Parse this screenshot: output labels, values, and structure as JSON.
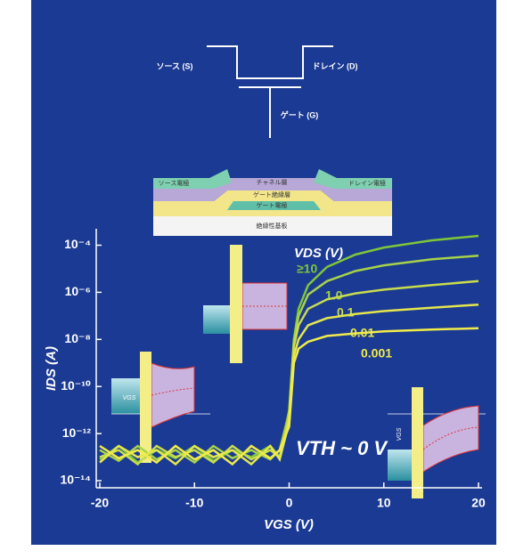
{
  "schematic": {
    "source": "ソース (S)",
    "drain": "ドレイン (D)",
    "gate": "ゲート (G)",
    "layers": [
      "ソース電極",
      "チャネル層",
      "ドレイン電極",
      "ゲート絶縁層",
      "ゲート電極",
      "絶縁性基板"
    ]
  },
  "chart_data": {
    "type": "line",
    "yscale": "log",
    "x_label": "VGS (V)",
    "y_label": "IDS (A)",
    "annotations": [
      "VDS (V)",
      "VTH ~ 0 V"
    ],
    "inset_labels": [
      "VGS",
      "VGS"
    ],
    "x": [
      -20,
      -18,
      -16,
      -14,
      -12,
      -10,
      -8,
      -6,
      -4,
      -2,
      -1,
      0,
      0.5,
      1,
      2,
      4,
      7,
      10,
      15,
      20
    ],
    "series": [
      {
        "name": "≥10",
        "color": "#7ec63a",
        "values": [
          8e-14,
          3e-13,
          6e-14,
          2e-13,
          9e-14,
          3e-13,
          7e-14,
          2e-13,
          1e-13,
          3e-13,
          1e-13,
          1e-11,
          1e-08,
          2e-07,
          2e-06,
          1.2e-05,
          4e-05,
          8e-05,
          0.00016,
          0.00025
        ]
      },
      {
        "name": "1.0",
        "color": "#a6d24a",
        "values": [
          2e-13,
          7e-14,
          3e-13,
          8e-14,
          2e-13,
          6e-14,
          3e-13,
          9e-14,
          2e-13,
          8e-14,
          2e-13,
          8e-12,
          8e-09,
          1e-07,
          8e-07,
          3e-06,
          8e-06,
          1.4e-05,
          2.5e-05,
          3.6e-05
        ]
      },
      {
        "name": "0.1",
        "color": "#c8dc4e",
        "values": [
          1e-13,
          2e-13,
          5e-14,
          3e-13,
          1e-13,
          2e-13,
          6e-14,
          3e-13,
          8e-14,
          2e-13,
          1e-13,
          5e-12,
          5e-09,
          4e-08,
          2e-07,
          5e-07,
          9e-07,
          1.3e-06,
          2e-06,
          3e-06
        ]
      },
      {
        "name": "0.01",
        "color": "#e3e64d",
        "values": [
          6e-14,
          3e-13,
          1e-13,
          2e-13,
          5e-14,
          3e-13,
          1e-13,
          2e-13,
          5e-14,
          3e-13,
          8e-14,
          3e-12,
          2e-09,
          1e-08,
          4e-08,
          8e-08,
          1.2e-07,
          1.6e-07,
          2.2e-07,
          3e-07
        ]
      },
      {
        "name": "0.001",
        "color": "#f2ec4a",
        "values": [
          3e-13,
          9e-14,
          2e-13,
          6e-14,
          3e-13,
          8e-14,
          2e-13,
          5e-14,
          3e-13,
          9e-14,
          2e-13,
          2e-12,
          1e-09,
          4e-09,
          8e-09,
          1.4e-08,
          1.8e-08,
          2.2e-08,
          2.6e-08,
          3e-08
        ]
      }
    ],
    "xlim": [
      -20,
      20
    ],
    "xticks": [
      -20,
      -10,
      0,
      10,
      20
    ],
    "ylim": [
      5e-15,
      0.0005
    ],
    "yticks": [
      {
        "value": 1e-14,
        "label": "10⁻¹⁴"
      },
      {
        "value": 1e-12,
        "label": "10⁻¹²"
      },
      {
        "value": 1e-10,
        "label": "10⁻¹⁰"
      },
      {
        "value": 1e-08,
        "label": "10⁻⁸"
      },
      {
        "value": 1e-06,
        "label": "10⁻⁶"
      },
      {
        "value": 0.0001,
        "label": "10⁻⁴"
      }
    ],
    "grid": false
  }
}
